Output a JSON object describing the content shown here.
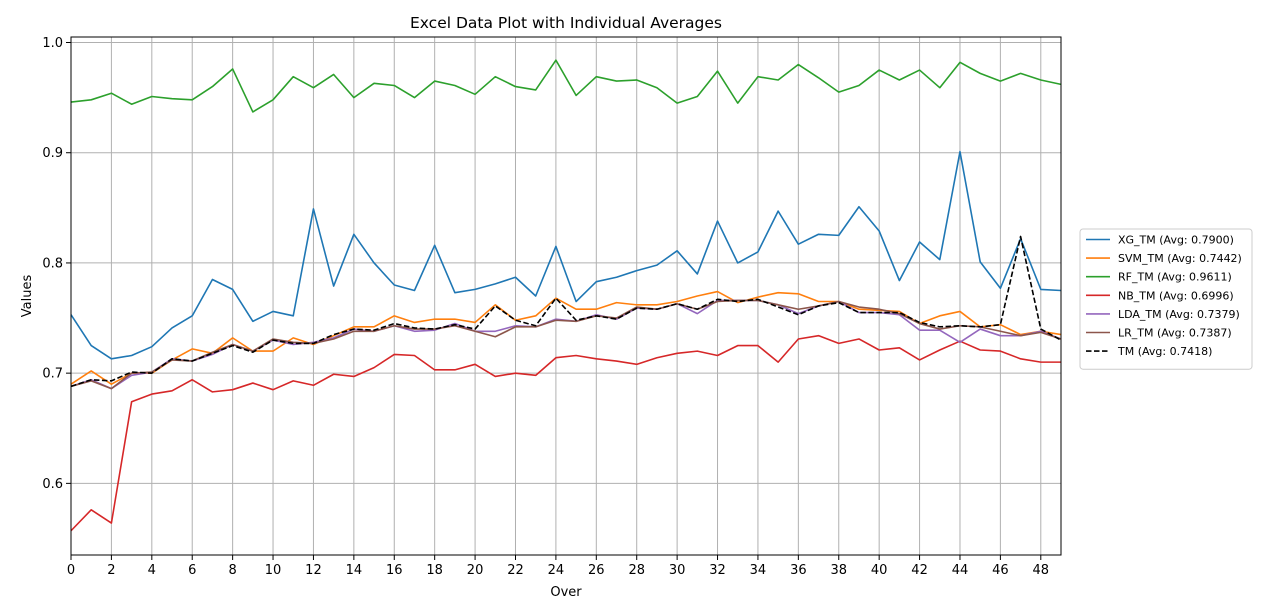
{
  "chart_data": {
    "type": "line",
    "title": "Excel Data Plot with Individual Averages",
    "xlabel": "Over",
    "ylabel": "Values",
    "xlim": [
      0,
      49
    ],
    "ylim": [
      0.535,
      1.005
    ],
    "xticks": [
      0,
      2,
      4,
      6,
      8,
      10,
      12,
      14,
      16,
      18,
      20,
      22,
      24,
      26,
      28,
      30,
      32,
      34,
      36,
      38,
      40,
      42,
      44,
      46,
      48
    ],
    "yticks": [
      0.6,
      0.7,
      0.8,
      0.9,
      1.0
    ],
    "ytick_labels": [
      "0.6",
      "0.7",
      "0.8",
      "0.9",
      "1.0"
    ],
    "grid": true,
    "legend_position": "right, outside plot",
    "x": [
      0,
      1,
      2,
      3,
      4,
      5,
      6,
      7,
      8,
      9,
      10,
      11,
      12,
      13,
      14,
      15,
      16,
      17,
      18,
      19,
      20,
      21,
      22,
      23,
      24,
      25,
      26,
      27,
      28,
      29,
      30,
      31,
      32,
      33,
      34,
      35,
      36,
      37,
      38,
      39,
      40,
      41,
      42,
      43,
      44,
      45,
      46,
      47,
      48,
      49
    ],
    "series": [
      {
        "name": "XG_TM (Avg: 0.7900)",
        "color": "#1f77b4",
        "dashed": false,
        "values": [
          0.753,
          0.725,
          0.713,
          0.716,
          0.724,
          0.741,
          0.752,
          0.785,
          0.776,
          0.747,
          0.756,
          0.752,
          0.849,
          0.779,
          0.826,
          0.8,
          0.78,
          0.775,
          0.816,
          0.773,
          0.776,
          0.781,
          0.787,
          0.77,
          0.815,
          0.765,
          0.783,
          0.787,
          0.793,
          0.798,
          0.811,
          0.79,
          0.838,
          0.8,
          0.81,
          0.847,
          0.817,
          0.826,
          0.825,
          0.851,
          0.829,
          0.784,
          0.819,
          0.803,
          0.901,
          0.801,
          0.777,
          0.822,
          0.776,
          0.775
        ]
      },
      {
        "name": "SVM_TM (Avg: 0.7442)",
        "color": "#ff7f0e",
        "dashed": false,
        "values": [
          0.69,
          0.702,
          0.69,
          0.7,
          0.7,
          0.712,
          0.722,
          0.718,
          0.732,
          0.72,
          0.72,
          0.732,
          0.726,
          0.734,
          0.742,
          0.742,
          0.752,
          0.746,
          0.749,
          0.749,
          0.746,
          0.762,
          0.748,
          0.752,
          0.768,
          0.758,
          0.758,
          0.764,
          0.762,
          0.762,
          0.765,
          0.77,
          0.774,
          0.764,
          0.769,
          0.773,
          0.772,
          0.765,
          0.765,
          0.758,
          0.757,
          0.756,
          0.745,
          0.752,
          0.756,
          0.742,
          0.744,
          0.735,
          0.738,
          0.735
        ]
      },
      {
        "name": "RF_TM (Avg: 0.9611)",
        "color": "#2ca02c",
        "dashed": false,
        "values": [
          0.946,
          0.948,
          0.954,
          0.944,
          0.951,
          0.949,
          0.948,
          0.96,
          0.976,
          0.937,
          0.948,
          0.969,
          0.959,
          0.971,
          0.95,
          0.963,
          0.961,
          0.95,
          0.965,
          0.961,
          0.953,
          0.969,
          0.96,
          0.957,
          0.984,
          0.952,
          0.969,
          0.965,
          0.966,
          0.959,
          0.945,
          0.951,
          0.974,
          0.945,
          0.969,
          0.966,
          0.98,
          0.968,
          0.955,
          0.961,
          0.975,
          0.966,
          0.975,
          0.959,
          0.982,
          0.972,
          0.965,
          0.972,
          0.966,
          0.962
        ]
      },
      {
        "name": "NB_TM (Avg: 0.6996)",
        "color": "#d62728",
        "dashed": false,
        "values": [
          0.557,
          0.576,
          0.564,
          0.674,
          0.681,
          0.684,
          0.694,
          0.683,
          0.685,
          0.691,
          0.685,
          0.693,
          0.689,
          0.699,
          0.697,
          0.705,
          0.717,
          0.716,
          0.703,
          0.703,
          0.708,
          0.697,
          0.7,
          0.698,
          0.714,
          0.716,
          0.713,
          0.711,
          0.708,
          0.714,
          0.718,
          0.72,
          0.716,
          0.725,
          0.725,
          0.71,
          0.731,
          0.734,
          0.727,
          0.731,
          0.721,
          0.723,
          0.712,
          0.721,
          0.729,
          0.721,
          0.72,
          0.713,
          0.71,
          0.71
        ]
      },
      {
        "name": "LDA_TM (Avg: 0.7379)",
        "color": "#9467bd",
        "dashed": false,
        "values": [
          0.688,
          0.694,
          0.686,
          0.698,
          0.701,
          0.713,
          0.711,
          0.717,
          0.726,
          0.72,
          0.73,
          0.726,
          0.728,
          0.732,
          0.74,
          0.738,
          0.743,
          0.738,
          0.739,
          0.745,
          0.738,
          0.738,
          0.743,
          0.742,
          0.749,
          0.747,
          0.753,
          0.749,
          0.759,
          0.758,
          0.763,
          0.754,
          0.766,
          0.766,
          0.766,
          0.762,
          0.754,
          0.761,
          0.765,
          0.755,
          0.755,
          0.753,
          0.739,
          0.739,
          0.728,
          0.74,
          0.734,
          0.734,
          0.738,
          0.731
        ]
      },
      {
        "name": "LR_TM (Avg: 0.7387)",
        "color": "#8c564b",
        "dashed": false,
        "values": [
          0.688,
          0.693,
          0.686,
          0.7,
          0.701,
          0.712,
          0.711,
          0.719,
          0.726,
          0.72,
          0.731,
          0.728,
          0.727,
          0.731,
          0.738,
          0.738,
          0.743,
          0.74,
          0.74,
          0.743,
          0.738,
          0.733,
          0.742,
          0.742,
          0.748,
          0.747,
          0.752,
          0.75,
          0.76,
          0.758,
          0.763,
          0.758,
          0.765,
          0.766,
          0.766,
          0.762,
          0.758,
          0.761,
          0.765,
          0.76,
          0.758,
          0.754,
          0.745,
          0.74,
          0.743,
          0.742,
          0.738,
          0.734,
          0.737,
          0.731
        ]
      },
      {
        "name": "TM (Avg: 0.7418)",
        "color": "#000000",
        "dashed": true,
        "values": [
          0.688,
          0.694,
          0.693,
          0.701,
          0.7,
          0.713,
          0.711,
          0.718,
          0.725,
          0.719,
          0.73,
          0.727,
          0.727,
          0.735,
          0.74,
          0.739,
          0.745,
          0.741,
          0.74,
          0.744,
          0.74,
          0.761,
          0.748,
          0.743,
          0.768,
          0.748,
          0.752,
          0.749,
          0.759,
          0.758,
          0.763,
          0.758,
          0.767,
          0.765,
          0.767,
          0.76,
          0.753,
          0.761,
          0.764,
          0.755,
          0.755,
          0.755,
          0.746,
          0.742,
          0.743,
          0.742,
          0.744,
          0.824,
          0.74,
          0.73
        ]
      }
    ]
  }
}
